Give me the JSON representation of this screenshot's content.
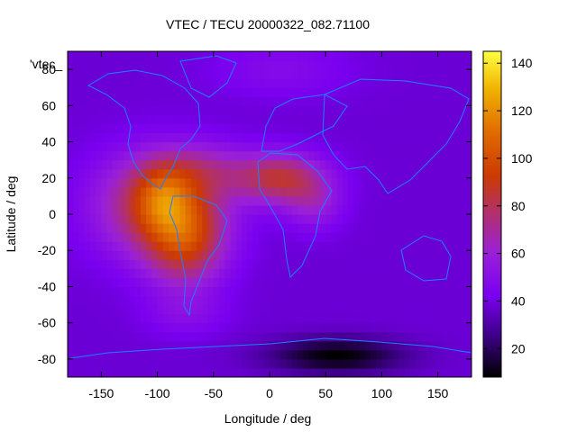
{
  "chart_data": {
    "type": "heatmap",
    "title": "VTEC / TECU 20000322_082.71100",
    "xlabel": "Longitude / deg",
    "ylabel": "Latitude / deg",
    "xlim": [
      -180,
      180
    ],
    "ylim": [
      -90,
      90
    ],
    "x_ticks": [
      -150,
      -100,
      -50,
      0,
      50,
      100,
      150
    ],
    "x_tick_labels": [
      "-150",
      "-100",
      "-50",
      "0",
      "50",
      "100",
      "150"
    ],
    "y_ticks": [
      -80,
      -60,
      -40,
      -20,
      0,
      20,
      40,
      60,
      80
    ],
    "y_tick_labels": [
      "-80",
      "-60",
      "-40",
      "-20",
      "0",
      "20",
      "40",
      "60",
      "80"
    ],
    "colorbar": {
      "range": [
        8,
        145
      ],
      "ticks": [
        20,
        40,
        60,
        80,
        100,
        120,
        140
      ],
      "tick_labels": [
        "20",
        "40",
        "60",
        "80",
        "100",
        "120",
        "140"
      ]
    },
    "legend_label": "'vtec_",
    "grid": false,
    "background_value": 38,
    "blobs": [
      {
        "lon": -100,
        "lat": 5,
        "slon": 55,
        "slat": 28,
        "amp": 45
      },
      {
        "lon": -75,
        "lat": -15,
        "slon": 35,
        "slat": 25,
        "amp": 45
      },
      {
        "lon": -95,
        "lat": 10,
        "slon": 25,
        "slat": 18,
        "amp": 25
      },
      {
        "lon": -60,
        "lat": 25,
        "slon": 45,
        "slat": 15,
        "amp": 20
      },
      {
        "lon": 10,
        "lat": 20,
        "slon": 40,
        "slat": 14,
        "amp": 45
      },
      {
        "lon": 40,
        "lat": 5,
        "slon": 25,
        "slat": 14,
        "amp": 18
      },
      {
        "lon": -75,
        "lat": -55,
        "slon": 35,
        "slat": 12,
        "amp": 10
      },
      {
        "lon": 60,
        "lat": -78,
        "slon": 60,
        "slat": 10,
        "amp": -30
      },
      {
        "lon": 10,
        "lat": 80,
        "slon": 60,
        "slat": 15,
        "amp": 10
      }
    ]
  }
}
